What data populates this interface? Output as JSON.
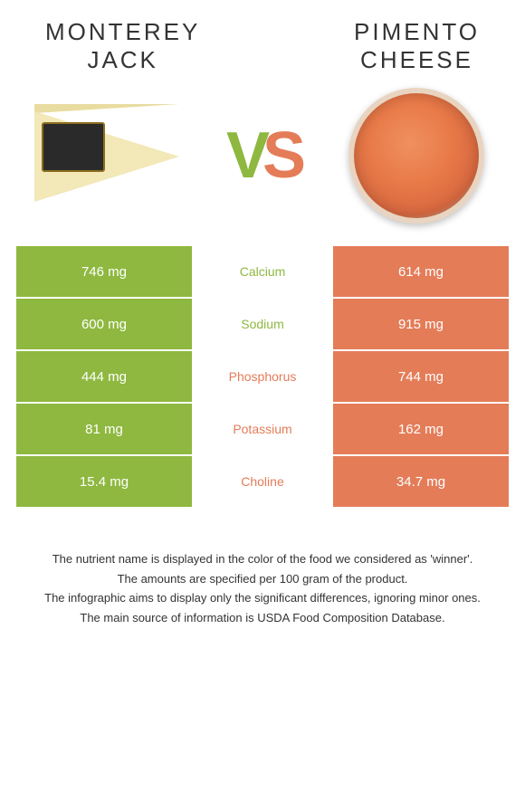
{
  "colors": {
    "green": "#8eb83f",
    "orange": "#e47c58",
    "white": "#ffffff",
    "text": "#333333"
  },
  "left": {
    "title_line1": "Monterey",
    "title_line2": "Jack"
  },
  "right": {
    "title_line1": "Pimento",
    "title_line2": "cheese"
  },
  "vs": {
    "v": "V",
    "s": "S"
  },
  "rows": [
    {
      "left": "746 mg",
      "label": "Calcium",
      "right": "614 mg",
      "winner": "left"
    },
    {
      "left": "600 mg",
      "label": "Sodium",
      "right": "915 mg",
      "winner": "left"
    },
    {
      "left": "444 mg",
      "label": "Phosphorus",
      "right": "744 mg",
      "winner": "right"
    },
    {
      "left": "81 mg",
      "label": "Potassium",
      "right": "162 mg",
      "winner": "right"
    },
    {
      "left": "15.4 mg",
      "label": "Choline",
      "right": "34.7 mg",
      "winner": "right"
    }
  ],
  "footer": {
    "l1": "The nutrient name is displayed in the color of the food we considered as 'winner'.",
    "l2": "The amounts are specified per 100 gram of the product.",
    "l3": "The infographic aims to display only the significant differences, ignoring minor ones.",
    "l4": "The main source of information is USDA Food Composition Database."
  }
}
